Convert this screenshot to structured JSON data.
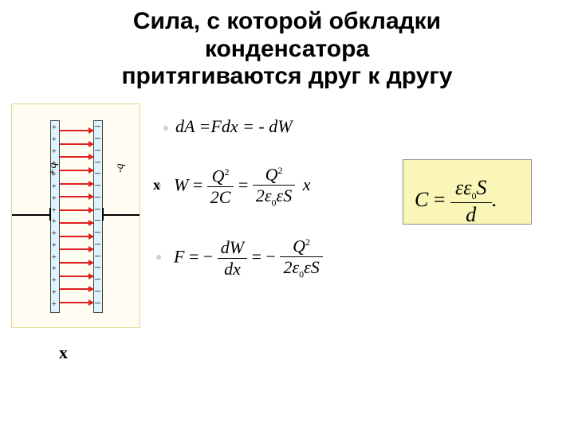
{
  "title_html": "Сила, с которой обкладки<br>конденсатора<br>притягиваются друг к другу",
  "bullet_equation": "dA =Fdx = - dW",
  "equations": {
    "W": {
      "lhs": "W",
      "t1_num": "Q<sup class='sup'>2</sup>",
      "t1_den": "2C",
      "t2_num": "Q<sup class='sup'>2</sup>",
      "t2_den": "2&epsilon;<sub class='sub'>0</sub>&epsilon;S",
      "tail": "x"
    },
    "F": {
      "lhs": "F",
      "t1_num": "dW",
      "t1_den": "dx",
      "t2_num": "Q<sup class='sup'>2</sup>",
      "t2_den": "2&epsilon;<sub class='sub'>0</sub>&epsilon;S"
    },
    "C": {
      "lhs": "C",
      "num": "&epsilon;&epsilon;<sub class='sub'>0</sub>S",
      "den": "d",
      "tail": "."
    }
  },
  "labels": {
    "q_plus": "+q",
    "q_minus": "-q",
    "x_inner": "x",
    "x_outer": "x"
  },
  "diagram": {
    "bg": "#fffdf1",
    "plate_fill": "#dff3fe",
    "arrow_color": "#e02020",
    "n_plus_rows": 16,
    "n_minus_rows": 16,
    "n_field_lines": 14
  },
  "colors": {
    "formula_box_bg": "#faf6b7",
    "formula_box_border": "#8c8c8c",
    "bullet_dot": "#cfcfcf"
  }
}
